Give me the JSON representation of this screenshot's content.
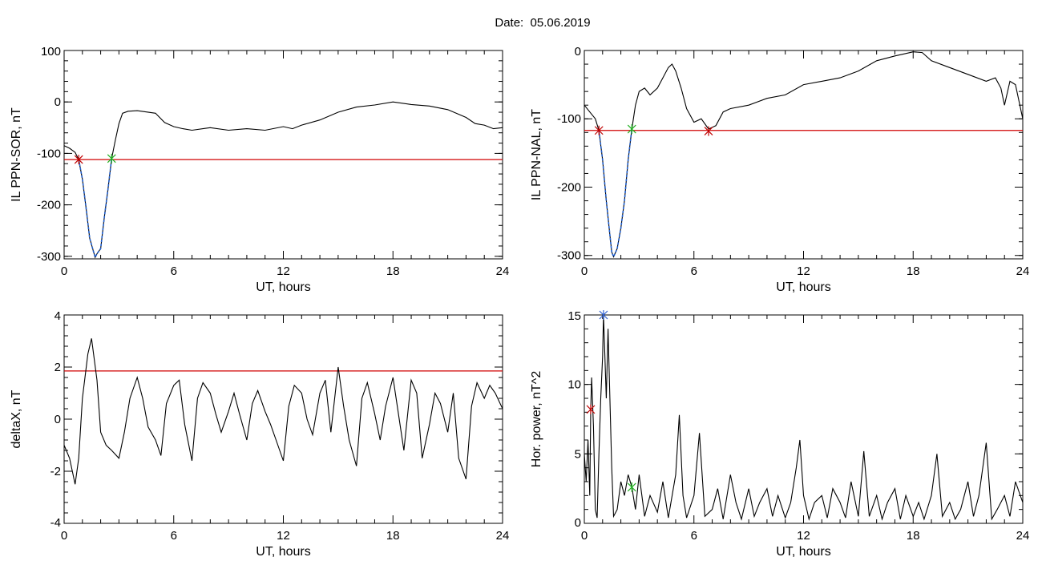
{
  "page_title": "Date:  05.06.2019",
  "colors": {
    "axis": "#000000",
    "threshold": "#d00000",
    "highlight": "#1f5fd0",
    "marker_start": "#c00000",
    "marker_end": "#20b020",
    "marker_peak": "#3060d0"
  },
  "chart_data": [
    {
      "type": "line",
      "xlabel": "UT, hours",
      "ylabel": "IL PPN-SOR, nT",
      "xlim": [
        0,
        24
      ],
      "ylim": [
        -305,
        100
      ],
      "xticks": [
        "0",
        "6",
        "12",
        "18",
        "24"
      ],
      "yticks": [
        {
          "v": 100,
          "label": "100"
        },
        {
          "v": 0,
          "label": "0"
        },
        {
          "v": -100,
          "label": "-100"
        },
        {
          "v": -200,
          "label": "-200"
        },
        {
          "v": -300,
          "label": "-300"
        }
      ],
      "threshold": -112,
      "highlight_range": [
        0.8,
        2.6
      ],
      "markers": [
        {
          "x": 0.8,
          "y": -112,
          "kind": "start"
        },
        {
          "x": 2.6,
          "y": -110,
          "kind": "end"
        }
      ],
      "series": [
        {
          "x": [
            0,
            0.3,
            0.6,
            0.8,
            1.0,
            1.2,
            1.4,
            1.6,
            1.7,
            1.8,
            2.0,
            2.2,
            2.4,
            2.6,
            2.8,
            3.0,
            3.2,
            3.5,
            4.0,
            5.0,
            5.5,
            6.0,
            6.5,
            7.0,
            8.0,
            9.0,
            10.0,
            11.0,
            12.0,
            12.5,
            13.0,
            14.0,
            15.0,
            16.0,
            17.0,
            18.0,
            19.0,
            20.0,
            21.0,
            22.0,
            22.5,
            23.0,
            23.5,
            24.0
          ],
          "y": [
            -85,
            -90,
            -98,
            -112,
            -150,
            -205,
            -265,
            -290,
            -302,
            -295,
            -285,
            -225,
            -170,
            -110,
            -75,
            -42,
            -22,
            -18,
            -17,
            -22,
            -40,
            -48,
            -52,
            -55,
            -50,
            -55,
            -52,
            -55,
            -48,
            -52,
            -45,
            -35,
            -20,
            -10,
            -6,
            0,
            -5,
            -8,
            -15,
            -30,
            -42,
            -45,
            -52,
            -50
          ]
        }
      ]
    },
    {
      "type": "line",
      "xlabel": "UT, hours",
      "ylabel": "IL PPN-NAL, nT",
      "xlim": [
        0,
        24
      ],
      "ylim": [
        -305,
        0
      ],
      "xticks": [
        "0",
        "6",
        "12",
        "18",
        "24"
      ],
      "yticks": [
        {
          "v": 0,
          "label": "0"
        },
        {
          "v": -100,
          "label": "-100"
        },
        {
          "v": -200,
          "label": "-200"
        },
        {
          "v": -300,
          "label": "-300"
        }
      ],
      "threshold": -117,
      "highlight_range": [
        0.8,
        2.6
      ],
      "markers": [
        {
          "x": 0.8,
          "y": -117,
          "kind": "start"
        },
        {
          "x": 2.6,
          "y": -115,
          "kind": "end"
        },
        {
          "x": 6.8,
          "y": -118,
          "kind": "start"
        }
      ],
      "series": [
        {
          "x": [
            0,
            0.3,
            0.6,
            0.8,
            1.0,
            1.2,
            1.4,
            1.5,
            1.6,
            1.8,
            2.0,
            2.2,
            2.4,
            2.6,
            2.8,
            3.0,
            3.3,
            3.6,
            4.0,
            4.3,
            4.6,
            4.8,
            5.0,
            5.3,
            5.6,
            6.0,
            6.4,
            6.8,
            7.2,
            7.6,
            8.0,
            9.0,
            10.0,
            11.0,
            12.0,
            13.0,
            14.0,
            15.0,
            16.0,
            17.0,
            18.0,
            18.5,
            19.0,
            20.0,
            21.0,
            22.0,
            22.5,
            22.8,
            23.0,
            23.3,
            23.6,
            24.0
          ],
          "y": [
            -80,
            -90,
            -100,
            -117,
            -160,
            -220,
            -270,
            -295,
            -302,
            -290,
            -260,
            -220,
            -160,
            -115,
            -80,
            -60,
            -55,
            -65,
            -55,
            -40,
            -25,
            -20,
            -30,
            -55,
            -85,
            -105,
            -100,
            -115,
            -110,
            -90,
            -85,
            -80,
            -70,
            -65,
            -50,
            -45,
            -40,
            -30,
            -15,
            -8,
            -2,
            -3,
            -15,
            -25,
            -35,
            -45,
            -40,
            -55,
            -80,
            -45,
            -50,
            -100
          ]
        }
      ]
    },
    {
      "type": "line",
      "xlabel": "UT, hours",
      "ylabel": "deltaX, nT",
      "xlim": [
        0,
        24
      ],
      "ylim": [
        -4,
        4
      ],
      "xticks": [
        "0",
        "6",
        "12",
        "18",
        "24"
      ],
      "yticks": [
        {
          "v": 4,
          "label": "4"
        },
        {
          "v": 2,
          "label": "2"
        },
        {
          "v": 0,
          "label": "0"
        },
        {
          "v": -2,
          "label": "-2"
        },
        {
          "v": -4,
          "label": "-4"
        }
      ],
      "threshold": 1.85,
      "series": [
        {
          "x": [
            0,
            0.3,
            0.6,
            0.8,
            1.0,
            1.3,
            1.5,
            1.8,
            2.0,
            2.3,
            2.6,
            3.0,
            3.3,
            3.6,
            4.0,
            4.3,
            4.6,
            5.0,
            5.3,
            5.6,
            6.0,
            6.3,
            6.6,
            7.0,
            7.3,
            7.6,
            8.0,
            8.3,
            8.6,
            9.0,
            9.3,
            9.6,
            10.0,
            10.3,
            10.6,
            11.0,
            11.3,
            11.6,
            12.0,
            12.3,
            12.6,
            13.0,
            13.3,
            13.6,
            14.0,
            14.3,
            14.6,
            15.0,
            15.3,
            15.6,
            16.0,
            16.3,
            16.6,
            17.0,
            17.3,
            17.6,
            18.0,
            18.3,
            18.6,
            19.0,
            19.3,
            19.6,
            20.0,
            20.3,
            20.6,
            21.0,
            21.3,
            21.6,
            22.0,
            22.3,
            22.6,
            23.0,
            23.3,
            23.6,
            24.0
          ],
          "y": [
            -1,
            -1.5,
            -2.5,
            -1.5,
            0.8,
            2.5,
            3.1,
            1.5,
            -0.5,
            -1.0,
            -1.2,
            -1.5,
            -0.5,
            0.8,
            1.6,
            0.8,
            -0.3,
            -0.8,
            -1.4,
            0.6,
            1.3,
            1.5,
            -0.2,
            -1.6,
            0.8,
            1.4,
            1.0,
            0.2,
            -0.5,
            0.3,
            1.0,
            0.2,
            -0.8,
            0.6,
            1.1,
            0.3,
            -0.2,
            -0.8,
            -1.6,
            0.5,
            1.3,
            1.0,
            0.0,
            -0.6,
            1.0,
            1.5,
            -0.5,
            2.0,
            0.5,
            -0.8,
            -1.8,
            0.8,
            1.4,
            0.2,
            -0.8,
            0.5,
            1.6,
            0.2,
            -1.2,
            1.5,
            1.0,
            -1.5,
            -0.2,
            1.0,
            0.6,
            -0.5,
            1.0,
            -1.5,
            -2.3,
            0.5,
            1.4,
            0.8,
            1.3,
            1.0,
            0.4
          ]
        }
      ]
    },
    {
      "type": "line",
      "xlabel": "UT, hours",
      "ylabel": "Hor. power, nT^2",
      "xlim": [
        0,
        24
      ],
      "ylim": [
        0,
        15
      ],
      "xticks": [
        "0",
        "6",
        "12",
        "18",
        "24"
      ],
      "yticks": [
        {
          "v": 15,
          "label": "15"
        },
        {
          "v": 10,
          "label": "10"
        },
        {
          "v": 5,
          "label": "5"
        },
        {
          "v": 0,
          "label": "0"
        }
      ],
      "markers": [
        {
          "x": 0.35,
          "y": 8.2,
          "kind": "start"
        },
        {
          "x": 1.05,
          "y": 15,
          "kind": "peak"
        },
        {
          "x": 2.6,
          "y": 2.6,
          "kind": "end"
        }
      ],
      "series": [
        {
          "x": [
            0,
            0.1,
            0.2,
            0.3,
            0.35,
            0.4,
            0.5,
            0.6,
            0.7,
            0.8,
            0.9,
            1.0,
            1.05,
            1.1,
            1.2,
            1.3,
            1.4,
            1.5,
            1.6,
            1.8,
            2.0,
            2.2,
            2.4,
            2.6,
            2.8,
            3.0,
            3.3,
            3.6,
            4.0,
            4.3,
            4.6,
            5.0,
            5.2,
            5.4,
            5.6,
            6.0,
            6.3,
            6.6,
            7.0,
            7.3,
            7.6,
            8.0,
            8.3,
            8.6,
            9.0,
            9.3,
            9.6,
            10.0,
            10.3,
            10.6,
            11.0,
            11.3,
            11.6,
            11.8,
            12.0,
            12.3,
            12.6,
            13.0,
            13.3,
            13.6,
            14.0,
            14.3,
            14.6,
            15.0,
            15.3,
            15.6,
            16.0,
            16.3,
            16.6,
            17.0,
            17.3,
            17.6,
            18.0,
            18.3,
            18.6,
            19.0,
            19.3,
            19.6,
            20.0,
            20.3,
            20.6,
            21.0,
            21.3,
            21.6,
            22.0,
            22.3,
            22.6,
            23.0,
            23.3,
            23.6,
            24.0
          ],
          "y": [
            5,
            3,
            6,
            2,
            8.2,
            10.5,
            7,
            1,
            0.4,
            5,
            9,
            12,
            15,
            13,
            9,
            14,
            9,
            4,
            0.5,
            1,
            3,
            2,
            3.5,
            2.6,
            1,
            3.5,
            0.5,
            2,
            0.8,
            3,
            0.4,
            3.5,
            7.8,
            2,
            0.4,
            2,
            6.5,
            0.5,
            1,
            2.5,
            0.3,
            3.5,
            1.5,
            0.3,
            2.5,
            0.5,
            1.5,
            2.5,
            0.5,
            2,
            0.4,
            1.5,
            4,
            6,
            2,
            0.3,
            1.5,
            2,
            0.4,
            2.5,
            1.5,
            0.4,
            3,
            0.5,
            5.2,
            0.5,
            2,
            0.3,
            1.5,
            2.5,
            0.3,
            2,
            0.5,
            1.5,
            0.3,
            2,
            5,
            0.5,
            1.5,
            0.3,
            1,
            3,
            0.5,
            2,
            5.8,
            0.3,
            1,
            2,
            0.5,
            3,
            1.5
          ]
        }
      ]
    }
  ]
}
